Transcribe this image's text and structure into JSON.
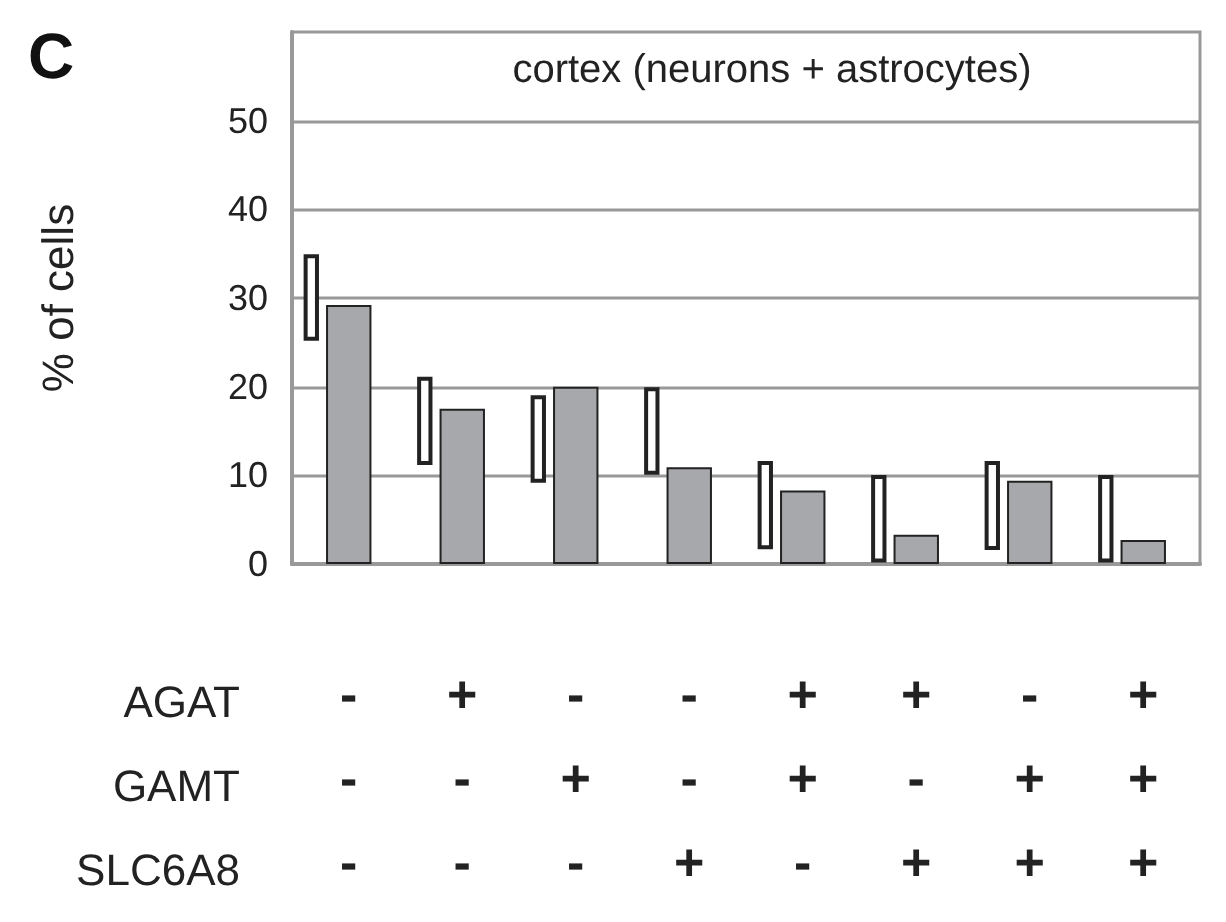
{
  "chart_data": {
    "type": "bar",
    "title": "cortex (neurons + astrocytes)",
    "ylabel": "% of cells",
    "categories": [
      "-\n-\n-",
      "+\n-\n-",
      "-\n+\n-",
      "-\n-\n+",
      "+\n+\n-",
      "+\n-\n+",
      "-\n+\n+",
      "+\n+\n+"
    ],
    "series": [
      {
        "color": "#ffffff",
        "base": [
          25.4,
          11.4,
          9.4,
          10.3,
          1.9,
          0.4,
          1.8,
          0.4
        ],
        "values": [
          9.3,
          9.5,
          9.4,
          9.4,
          9.5,
          9.4,
          9.6,
          9.4
        ]
      },
      {
        "color": "#a7a8ab",
        "values": [
          29.2,
          17.5,
          20,
          10.9,
          8.3,
          3.3,
          9.4,
          2.7
        ]
      }
    ],
    "ylim": [
      0,
      60
    ],
    "yticks": [
      0,
      10,
      20,
      30,
      40,
      50
    ],
    "grid": "y",
    "annotations": [
      "C",
      "AGAT",
      "GAMT",
      "SLC6A8"
    ]
  }
}
